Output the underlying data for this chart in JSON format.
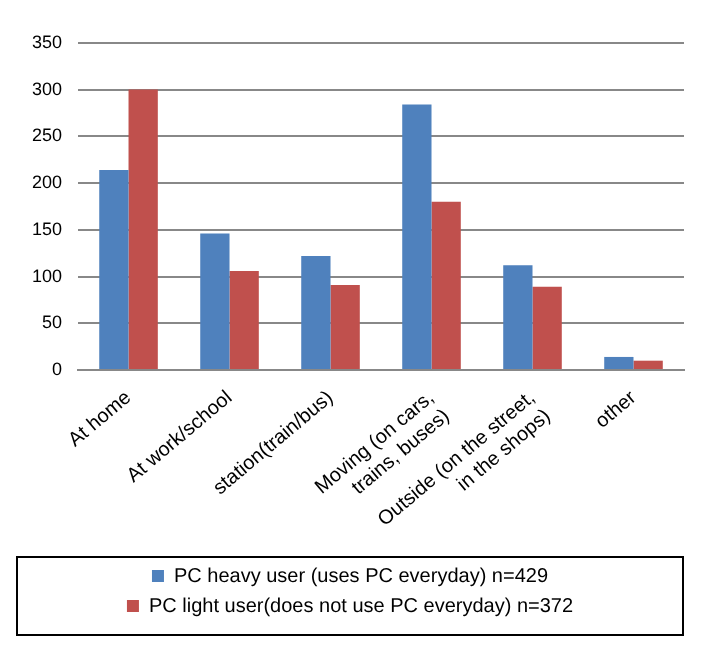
{
  "chart_data": {
    "type": "bar",
    "categories": [
      "At home",
      "At work/school",
      "station(train/bus)",
      "Moving (on cars,\ntrains, buses)",
      "Outside (on the street,\nin the shops)",
      "other"
    ],
    "series": [
      {
        "name": "PC heavy user (uses PC everyday) n=429",
        "color": "#4f81bd",
        "values": [
          214,
          146,
          122,
          284,
          112,
          14
        ]
      },
      {
        "name": "PC light user(does not use PC everyday) n=372",
        "color": "#c0504d",
        "values": [
          300,
          106,
          91,
          180,
          89,
          10
        ]
      }
    ],
    "ylim": [
      0,
      350
    ],
    "yticks": [
      0,
      50,
      100,
      150,
      200,
      250,
      300,
      350
    ],
    "grid": "y",
    "legend": "bottom"
  }
}
